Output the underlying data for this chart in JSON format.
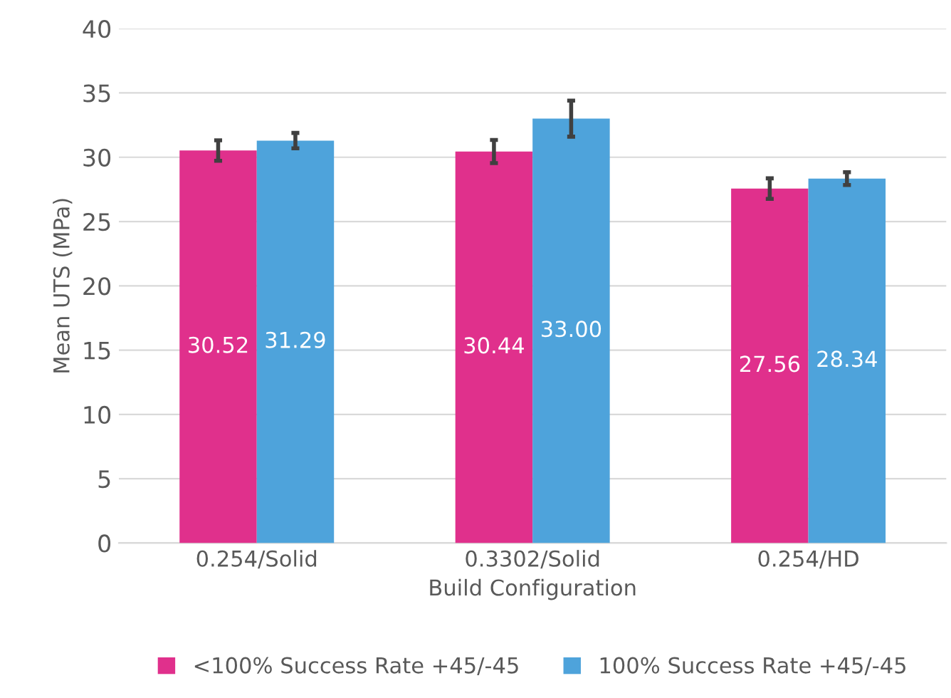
{
  "chart_data": {
    "type": "bar",
    "xlabel": "Build Configuration",
    "ylabel": "Mean UTS (MPa)",
    "categories": [
      "0.254/Solid",
      "0.3302/Solid",
      "0.254/HD"
    ],
    "series": [
      {
        "name": "<100% Success Rate +45/-45",
        "color": "#e0308c",
        "values": [
          30.52,
          30.44,
          27.56
        ],
        "value_labels": [
          "30.52",
          "30.44",
          "27.56"
        ],
        "errors": [
          0.8,
          0.9,
          0.8
        ]
      },
      {
        "name": "100% Success Rate +45/-45",
        "color": "#4ea3db",
        "values": [
          31.29,
          33.0,
          28.34
        ],
        "value_labels": [
          "31.29",
          "33.00",
          "28.34"
        ],
        "errors": [
          0.6,
          1.4,
          0.5
        ]
      }
    ],
    "ylim": [
      0,
      40
    ],
    "yticks": [
      0,
      5,
      10,
      15,
      20,
      25,
      30,
      35,
      40
    ],
    "grid": "y",
    "legend": "bottom"
  }
}
